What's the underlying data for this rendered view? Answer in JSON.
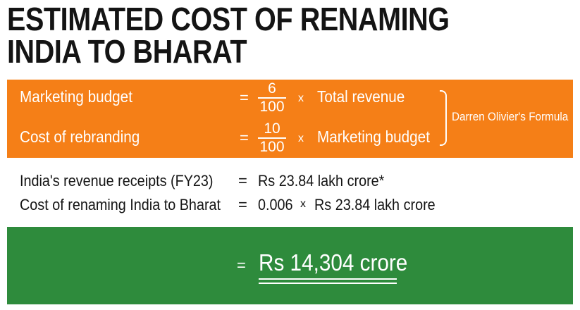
{
  "title": {
    "line1": "ESTIMATED COST OF RENAMING",
    "line2": "INDIA TO BHARAT"
  },
  "formula": {
    "row1": {
      "label": "Marketing budget",
      "equals": "=",
      "numerator": "6",
      "denominator": "100",
      "times": "x",
      "term": "Total revenue"
    },
    "row2": {
      "label": "Cost of rebranding",
      "equals": "=",
      "numerator": "10",
      "denominator": "100",
      "times": "x",
      "term": "Marketing budget"
    },
    "source_note": "Darren Olivier's Formula"
  },
  "calc": {
    "row1": {
      "label": "India's revenue receipts (FY23)",
      "equals": "=",
      "value": "Rs 23.84 lakh crore*"
    },
    "row2": {
      "label": "Cost of renaming India to Bharat",
      "equals": "=",
      "factor": "0.006",
      "times": "x",
      "value": "Rs 23.84 lakh crore"
    }
  },
  "result": {
    "equals": "=",
    "value": "Rs 14,304 crore"
  },
  "colors": {
    "orange": "#f57f17",
    "green": "#2e8b3c",
    "title": "#141414"
  }
}
